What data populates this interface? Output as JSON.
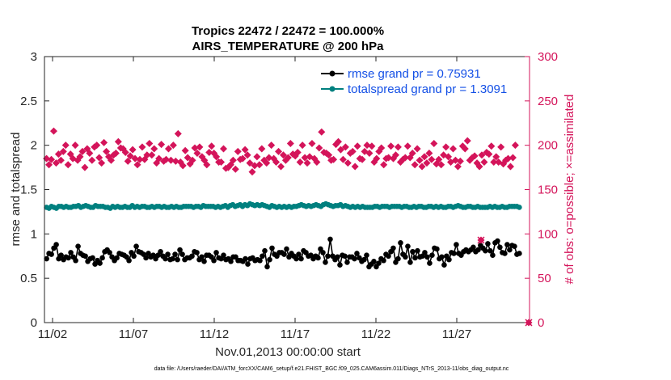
{
  "chart_data": {
    "type": "line",
    "title": [
      "Tropics 22472 / 22472 = 100.000%",
      "AIRS_TEMPERATURE @ 200 hPa"
    ],
    "xlabel": "Nov.01,2013 00:00:00 start",
    "ylabel_left": "rmse and totalspread",
    "ylabel_right": "# of obs: o=possible; ×=assimilated",
    "x_tick_labels": [
      "11/02",
      "11/07",
      "11/12",
      "11/17",
      "11/22",
      "11/27"
    ],
    "x_tick_values": [
      1,
      6,
      11,
      16,
      21,
      26
    ],
    "xlim": [
      0.5,
      30.5
    ],
    "ylim_left": [
      0,
      3
    ],
    "ylim_right": [
      0,
      300
    ],
    "y_left_ticks": [
      "0",
      "0.5",
      "1",
      "1.5",
      "2",
      "2.5",
      "3"
    ],
    "y_right_ticks": [
      "0",
      "50",
      "100",
      "150",
      "200",
      "250",
      "300"
    ],
    "footnote": "data file: /Users/raeder/DAI/ATM_forcXX/CAM6_setup/f.e21.FHIST_BGC.f09_025.CAM6assim.011/Diags_NTrS_2013-11/obs_diag_output.nc",
    "colors": {
      "rmse": "#000000",
      "spread": "#00807f",
      "obs": "#d4145a",
      "legend_text": "#1450e6",
      "right_axis": "#d4145a"
    },
    "series": [
      {
        "name": "rmse grand pr = 0.75931",
        "axis": "left",
        "values": [
          0.72,
          0.78,
          0.77,
          0.84,
          0.88,
          0.72,
          0.76,
          0.71,
          0.74,
          0.73,
          0.79,
          0.74,
          0.7,
          0.86,
          0.78,
          0.76,
          0.75,
          0.69,
          0.72,
          0.73,
          0.66,
          0.7,
          0.67,
          0.73,
          0.8,
          0.82,
          0.79,
          0.74,
          0.7,
          0.73,
          0.78,
          0.77,
          0.76,
          0.74,
          0.7,
          0.79,
          0.75,
          0.86,
          0.8,
          0.79,
          0.77,
          0.73,
          0.78,
          0.74,
          0.76,
          0.72,
          0.76,
          0.8,
          0.75,
          0.72,
          0.77,
          0.71,
          0.72,
          0.77,
          0.71,
          0.82,
          0.77,
          0.71,
          0.73,
          0.73,
          0.75,
          0.8,
          0.79,
          0.71,
          0.74,
          0.69,
          0.76,
          0.76,
          0.74,
          0.7,
          0.79,
          0.73,
          0.72,
          0.76,
          0.71,
          0.72,
          0.69,
          0.74,
          0.74,
          0.7,
          0.7,
          0.69,
          0.72,
          0.66,
          0.72,
          0.73,
          0.7,
          0.71,
          0.7,
          0.75,
          0.81,
          0.63,
          0.71,
          0.84,
          0.77,
          0.75,
          0.79,
          0.79,
          0.77,
          0.83,
          0.74,
          0.78,
          0.75,
          0.72,
          0.77,
          0.72,
          0.81,
          0.79,
          0.75,
          0.76,
          0.72,
          0.75,
          0.73,
          0.83,
          0.79,
          0.68,
          0.75,
          0.94,
          0.75,
          0.71,
          0.74,
          0.65,
          0.76,
          0.75,
          0.68,
          0.74,
          0.74,
          0.72,
          0.78,
          0.73,
          0.69,
          0.71,
          0.76,
          0.63,
          0.66,
          0.69,
          0.63,
          0.67,
          0.72,
          0.7,
          0.77,
          0.75,
          0.8,
          0.84,
          0.68,
          0.72,
          0.9,
          0.77,
          0.74,
          0.86,
          0.68,
          0.8,
          0.73,
          0.81,
          0.74,
          0.75,
          0.79,
          0.74,
          0.67,
          0.76,
          0.84,
          0.83,
          0.72,
          0.74,
          0.65,
          0.75,
          0.71,
          0.79,
          0.78,
          0.88,
          0.78,
          0.76,
          0.8,
          0.82,
          0.8,
          0.82,
          0.85,
          0.8,
          0.82,
          0.87,
          0.84,
          0.81,
          0.89,
          0.81,
          0.76,
          0.9,
          0.92,
          0.85,
          0.79,
          0.78,
          0.88,
          0.82,
          0.87,
          0.86,
          0.77,
          0.78
        ]
      },
      {
        "name": "totalspread grand pr = 1.3091",
        "axis": "left",
        "values": [
          1.3,
          1.29,
          1.31,
          1.3,
          1.29,
          1.31,
          1.31,
          1.3,
          1.31,
          1.3,
          1.3,
          1.31,
          1.31,
          1.32,
          1.3,
          1.31,
          1.32,
          1.31,
          1.3,
          1.3,
          1.32,
          1.31,
          1.31,
          1.31,
          1.3,
          1.3,
          1.29,
          1.31,
          1.3,
          1.31,
          1.3,
          1.3,
          1.31,
          1.3,
          1.3,
          1.32,
          1.3,
          1.31,
          1.3,
          1.31,
          1.31,
          1.3,
          1.3,
          1.31,
          1.3,
          1.31,
          1.31,
          1.3,
          1.31,
          1.3,
          1.3,
          1.31,
          1.3,
          1.31,
          1.3,
          1.3,
          1.31,
          1.31,
          1.31,
          1.31,
          1.3,
          1.31,
          1.31,
          1.3,
          1.32,
          1.31,
          1.31,
          1.31,
          1.31,
          1.3,
          1.31,
          1.3,
          1.31,
          1.32,
          1.3,
          1.32,
          1.33,
          1.31,
          1.32,
          1.33,
          1.31,
          1.33,
          1.32,
          1.34,
          1.33,
          1.32,
          1.33,
          1.32,
          1.33,
          1.32,
          1.31,
          1.3,
          1.32,
          1.31,
          1.3,
          1.31,
          1.3,
          1.31,
          1.3,
          1.31,
          1.3,
          1.31,
          1.31,
          1.32,
          1.33,
          1.32,
          1.31,
          1.32,
          1.31,
          1.32,
          1.33,
          1.32,
          1.31,
          1.33,
          1.34,
          1.33,
          1.32,
          1.31,
          1.32,
          1.32,
          1.33,
          1.31,
          1.32,
          1.31,
          1.3,
          1.31,
          1.3,
          1.31,
          1.3,
          1.31,
          1.3,
          1.3,
          1.3,
          1.3,
          1.31,
          1.31,
          1.3,
          1.31,
          1.31,
          1.31,
          1.3,
          1.31,
          1.31,
          1.31,
          1.31,
          1.3,
          1.31,
          1.31,
          1.3,
          1.3,
          1.31,
          1.3,
          1.31,
          1.31,
          1.3,
          1.3,
          1.31,
          1.31,
          1.3,
          1.31,
          1.3,
          1.31,
          1.3,
          1.3,
          1.31,
          1.31,
          1.3,
          1.31,
          1.32,
          1.31,
          1.3,
          1.3,
          1.31,
          1.31,
          1.3,
          1.3,
          1.31,
          1.3,
          1.3,
          1.3,
          1.3,
          1.31,
          1.3,
          1.31,
          1.3,
          1.3,
          1.31,
          1.3,
          1.3,
          1.31,
          1.31,
          1.31,
          1.31,
          1.3
        ]
      },
      {
        "name": "obs_possible",
        "axis": "right",
        "values": [
          185,
          178,
          184,
          216,
          180,
          190,
          183,
          193,
          200,
          178,
          190,
          185,
          200,
          183,
          187,
          193,
          175,
          196,
          191,
          183,
          198,
          200,
          186,
          180,
          203,
          193,
          187,
          183,
          189,
          191,
          204,
          197,
          196,
          192,
          182,
          188,
          195,
          185,
          178,
          184,
          198,
          184,
          189,
          202,
          189,
          196,
          180,
          185,
          201,
          182,
          184,
          196,
          183,
          200,
          182,
          213,
          181,
          177,
          194,
          186,
          179,
          183,
          197,
          191,
          198,
          187,
          183,
          178,
          192,
          199,
          191,
          187,
          181,
          181,
          196,
          174,
          175,
          178,
          183,
          173,
          193,
          184,
          185,
          195,
          189,
          180,
          170,
          177,
          187,
          178,
          196,
          183,
          180,
          186,
          200,
          185,
          181,
          193,
          176,
          189,
          183,
          186,
          202,
          190,
          188,
          192,
          181,
          200,
          186,
          180,
          187,
          202,
          185,
          181,
          197,
          215,
          192,
          191,
          189,
          183,
          184,
          201,
          204,
          195,
          184,
          198,
          180,
          191,
          193,
          176,
          199,
          185,
          184,
          193,
          200,
          191,
          199,
          181,
          185,
          193,
          197,
          178,
          185,
          186,
          199,
          185,
          189,
          198,
          181,
          184,
          186,
          199,
          186,
          191,
          178,
          196,
          183,
          176,
          187,
          180,
          191,
          184,
          202,
          179,
          184,
          178,
          189,
          198,
          187,
          181,
          196,
          183,
          176,
          182,
          199,
          196,
          205,
          183,
          186,
          188,
          180,
          176,
          189,
          181,
          192,
          190,
          199,
          181,
          187,
          181,
          198,
          179,
          183,
          185,
          176,
          186,
          200
        ]
      }
    ],
    "obs_assimilated_markers": [
      {
        "day": 27.5,
        "value": 93
      },
      {
        "day": 30.45,
        "value": 0
      }
    ]
  }
}
